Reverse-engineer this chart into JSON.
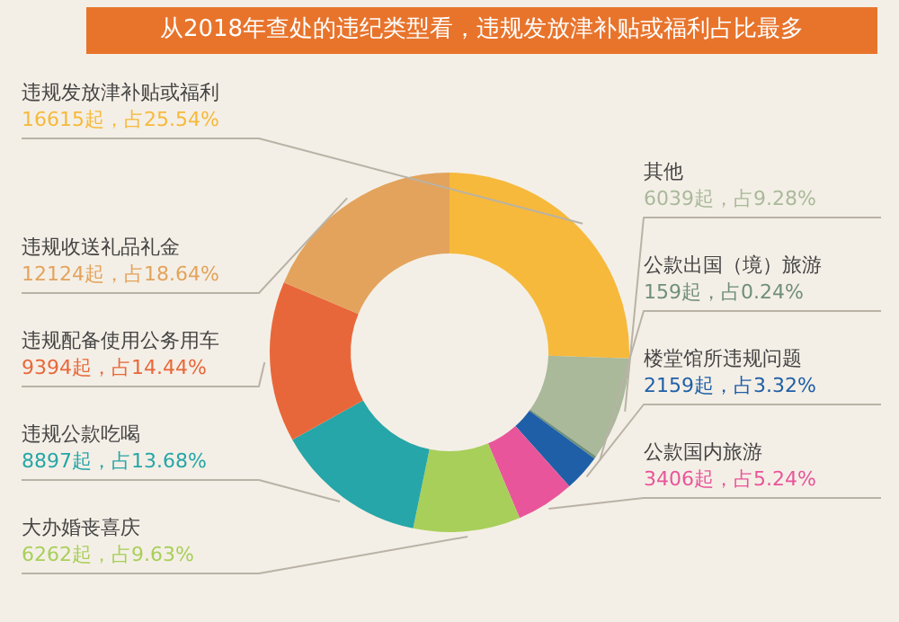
{
  "chart_data": {
    "type": "donut",
    "title": "从2018年查处的违纪类型看，违规发放津补贴或福利占比最多",
    "categories": [
      "违规发放津补贴或福利",
      "其他",
      "公款出国（境）旅游",
      "楼堂馆所违规问题",
      "公款国内旅游",
      "大办婚丧喜庆",
      "违规公款吃喝",
      "违规配备使用公务用车",
      "违规收送礼品礼金"
    ],
    "values": [
      16615,
      6039,
      159,
      2159,
      3406,
      6262,
      8897,
      9394,
      12124
    ],
    "colors": [
      "#f6b93b",
      "#a9b99a",
      "#6f8f7a",
      "#1f5fa8",
      "#e8559a",
      "#a8cf5a",
      "#26a6a8",
      "#e8673a",
      "#e3a35c"
    ],
    "value_labels": [
      "16615起，占25.54%",
      "6039起，占9.28%",
      "159起，占0.24%",
      "2159起，占3.32%",
      "3406起，占5.24%",
      "6262起，占9.63%",
      "8897起，占13.68%",
      "9394起，占14.44%",
      "12124起，占18.64%"
    ],
    "legend": false
  }
}
